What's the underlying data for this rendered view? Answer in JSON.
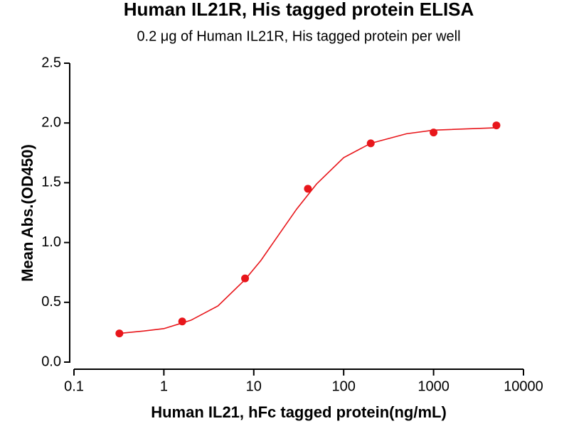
{
  "chart_data": {
    "type": "scatter",
    "title": "Human IL21R, His tagged protein ELISA",
    "subtitle": "0.2 μg of Human IL21R, His tagged protein per well",
    "x_label": "Human IL21, hFc tagged protein(ng/mL)",
    "y_label": "Mean Abs.(OD450)",
    "x_log": true,
    "color": "#e8161b",
    "x": [
      0.32,
      1.6,
      8,
      40,
      200,
      1000,
      5000
    ],
    "values": [
      0.24,
      0.34,
      0.7,
      1.45,
      1.83,
      1.92,
      1.98
    ],
    "curve": {
      "x": [
        0.32,
        0.6,
        1,
        2,
        4,
        8,
        12,
        20,
        30,
        50,
        100,
        200,
        500,
        1000,
        5000
      ],
      "values": [
        0.24,
        0.26,
        0.28,
        0.35,
        0.47,
        0.69,
        0.85,
        1.09,
        1.28,
        1.49,
        1.71,
        1.83,
        1.91,
        1.94,
        1.96
      ]
    },
    "xlim": [
      0.1,
      10000
    ],
    "xticks": [
      0.1,
      1,
      10,
      100,
      1000,
      10000
    ],
    "ylim": [
      0,
      2.5
    ],
    "yticks": [
      {
        "value": 0,
        "label": "0.0"
      },
      {
        "value": 0.5,
        "label": "0.5"
      },
      {
        "value": 1,
        "label": "1.0"
      },
      {
        "value": 1.5,
        "label": "1.5"
      },
      {
        "value": 2,
        "label": "2.0"
      },
      {
        "value": 2.5,
        "label": "2.5"
      }
    ]
  }
}
